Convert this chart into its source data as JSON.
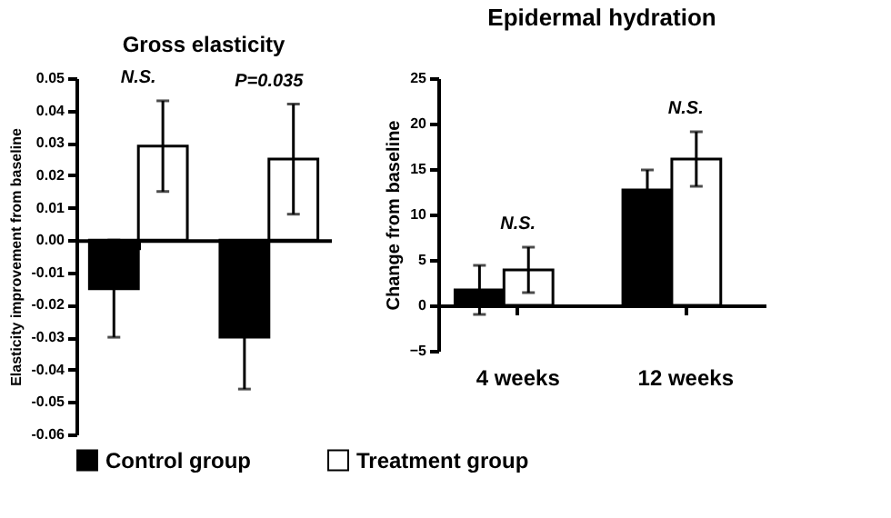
{
  "chart_data": [
    {
      "type": "bar",
      "title": "Gross elasticity",
      "ylabel": "Elasticity improvement from baseline",
      "categories": [
        null,
        null
      ],
      "series": [
        {
          "name": "Control group",
          "color": "#000000",
          "values": [
            -0.015,
            -0.03
          ],
          "errors": [
            0.015,
            0.016
          ]
        },
        {
          "name": "Treatment group",
          "color": "#ffffff",
          "values": [
            0.029,
            0.025
          ],
          "errors": [
            0.014,
            0.017
          ]
        }
      ],
      "ylim": [
        -0.06,
        0.05
      ],
      "yticks": [
        {
          "value": -0.06,
          "label": "-0.06"
        },
        {
          "value": -0.05,
          "label": "-0.05"
        },
        {
          "value": -0.04,
          "label": "-0.04"
        },
        {
          "value": -0.03,
          "label": "-0.03"
        },
        {
          "value": -0.02,
          "label": "-0.02"
        },
        {
          "value": -0.01,
          "label": "-0.01"
        },
        {
          "value": 0,
          "label": "0.00"
        },
        {
          "value": 0.01,
          "label": "0.01"
        },
        {
          "value": 0.02,
          "label": "0.02"
        },
        {
          "value": 0.03,
          "label": "0.03"
        },
        {
          "value": 0.04,
          "label": "0.04"
        },
        {
          "value": 0.05,
          "label": "0.05"
        }
      ],
      "annotations": [
        "N.S.",
        "P=0.035"
      ],
      "legend": "bottom"
    },
    {
      "type": "bar",
      "title": "Epidermal hydration",
      "ylabel": "Change from baseline",
      "categories": [
        "4 weeks",
        "12 weeks"
      ],
      "series": [
        {
          "name": "Control group",
          "color": "#000000",
          "values": [
            1.7,
            12.7
          ],
          "errors": [
            2.7,
            2.2
          ]
        },
        {
          "name": "Treatment group",
          "color": "#ffffff",
          "values": [
            3.9,
            16.1
          ],
          "errors": [
            2.5,
            3.0
          ]
        }
      ],
      "ylim": [
        -5,
        25
      ],
      "yticks": [
        -5,
        0,
        5,
        10,
        15,
        20,
        25
      ],
      "annotations": [
        "N.S.",
        "N.S."
      ],
      "legend": "bottom"
    }
  ]
}
